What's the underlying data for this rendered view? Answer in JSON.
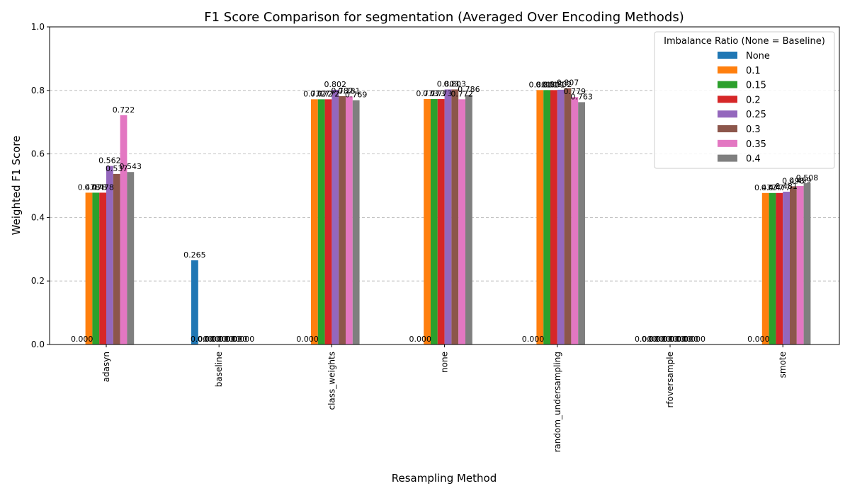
{
  "chart_data": {
    "type": "bar",
    "title": "F1 Score Comparison for segmentation (Averaged Over Encoding Methods)",
    "xlabel": "Resampling Method",
    "ylabel": "Weighted F1 Score",
    "ylim": [
      0,
      1.0
    ],
    "yticks": [
      0.0,
      0.2,
      0.4,
      0.6,
      0.8,
      1.0
    ],
    "ytick_labels": [
      "0.0",
      "0.2",
      "0.4",
      "0.6",
      "0.8",
      "1.0"
    ],
    "grid": true,
    "legend_title": "Imbalance Ratio (None = Baseline)",
    "legend_position": "top-right",
    "categories": [
      "adasyn",
      "baseline",
      "class_weights",
      "none",
      "random_undersampling",
      "rfoversample",
      "smote"
    ],
    "series": [
      {
        "name": "None",
        "color": "#1f77b4",
        "values": [
          0.0,
          0.265,
          0.0,
          0.0,
          0.0,
          0.0,
          0.0
        ]
      },
      {
        "name": "0.1",
        "color": "#ff7f0e",
        "values": [
          0.478,
          0.0,
          0.772,
          0.773,
          0.801,
          0.0,
          0.477
        ]
      },
      {
        "name": "0.15",
        "color": "#2ca02c",
        "values": [
          0.478,
          0.0,
          0.772,
          0.773,
          0.801,
          0.0,
          0.477
        ]
      },
      {
        "name": "0.2",
        "color": "#d62728",
        "values": [
          0.478,
          0.0,
          0.772,
          0.773,
          0.801,
          0.0,
          0.477
        ]
      },
      {
        "name": "0.25",
        "color": "#9467bd",
        "values": [
          0.562,
          0.0,
          0.802,
          0.803,
          0.802,
          0.0,
          0.481
        ]
      },
      {
        "name": "0.3",
        "color": "#8c564b",
        "values": [
          0.537,
          0.0,
          0.782,
          0.803,
          0.807,
          0.0,
          0.498
        ]
      },
      {
        "name": "0.35",
        "color": "#e377c2",
        "values": [
          0.722,
          0.0,
          0.781,
          0.772,
          0.779,
          0.0,
          0.499
        ]
      },
      {
        "name": "0.4",
        "color": "#7f7f7f",
        "values": [
          0.543,
          0.0,
          0.769,
          0.786,
          0.763,
          0.0,
          0.508
        ]
      }
    ]
  }
}
